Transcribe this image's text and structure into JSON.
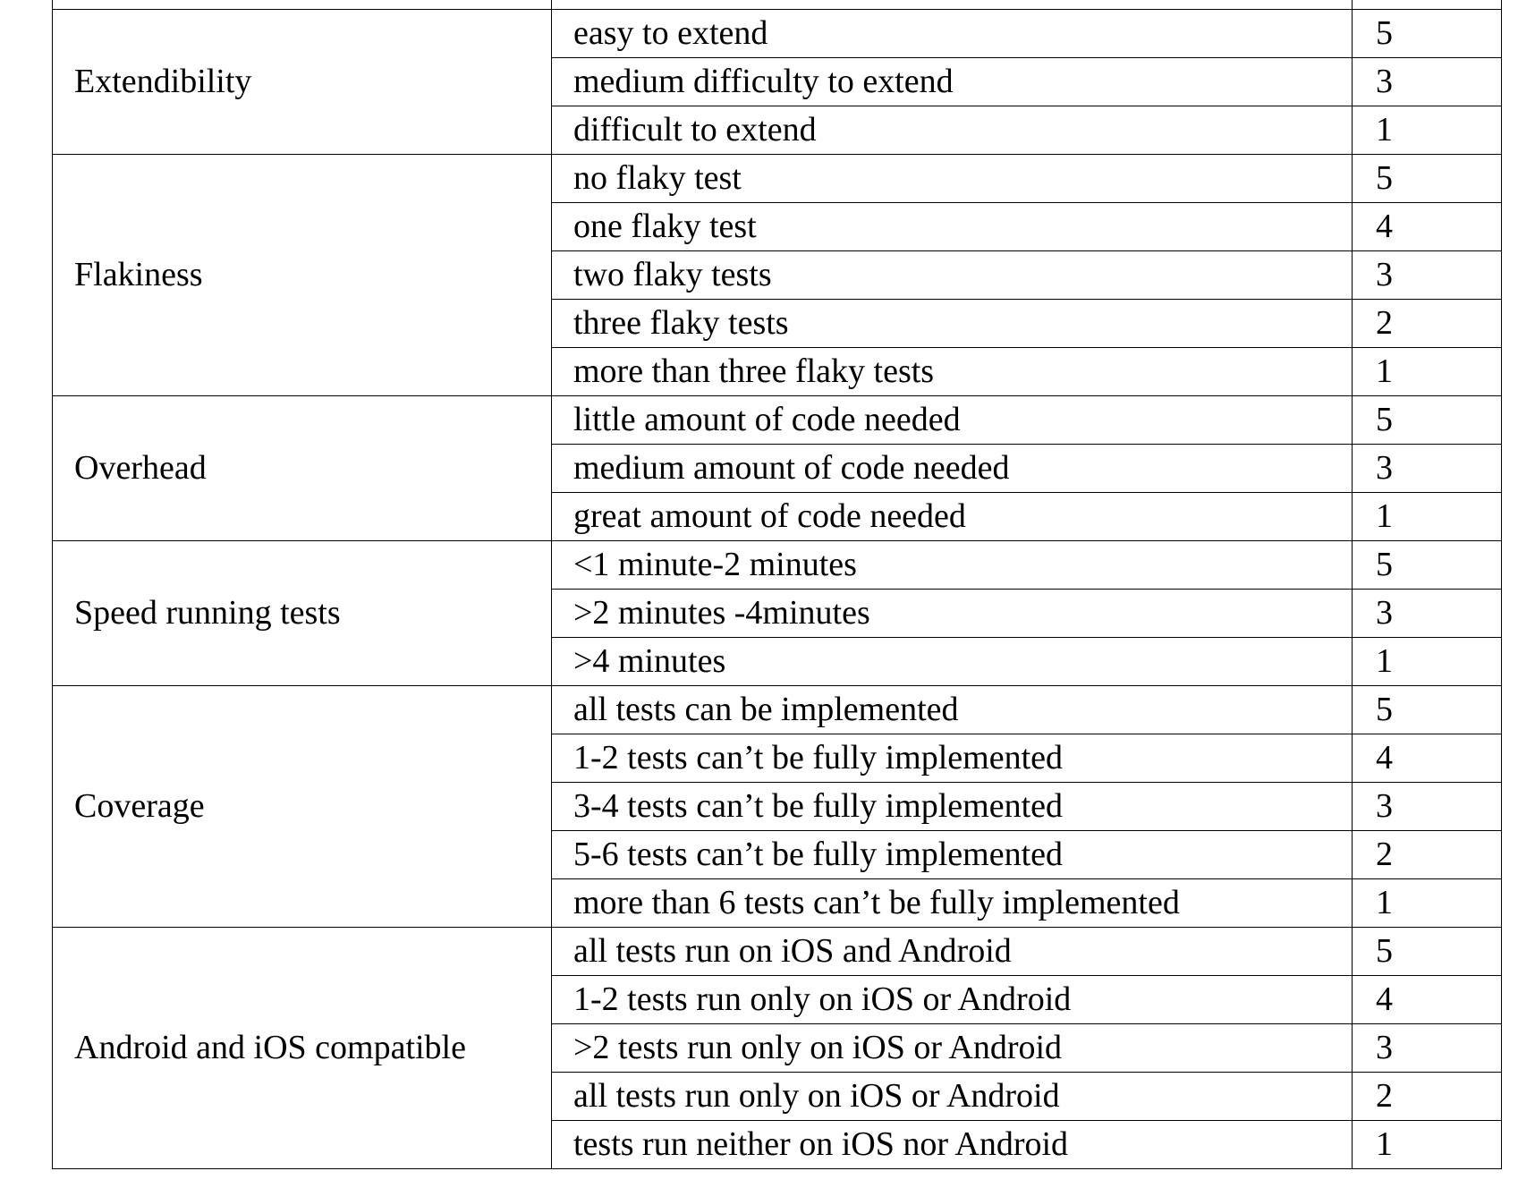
{
  "table": {
    "groups": [
      {
        "criterion": "Extendibility",
        "rows": [
          {
            "description": "easy to extend",
            "score": "5"
          },
          {
            "description": "medium difficulty to extend",
            "score": "3"
          },
          {
            "description": "difficult to extend",
            "score": "1"
          }
        ]
      },
      {
        "criterion": "Flakiness",
        "rows": [
          {
            "description": "no flaky test",
            "score": "5"
          },
          {
            "description": "one flaky test",
            "score": "4"
          },
          {
            "description": "two flaky tests",
            "score": "3"
          },
          {
            "description": "three flaky tests",
            "score": "2"
          },
          {
            "description": "more than three flaky tests",
            "score": "1"
          }
        ]
      },
      {
        "criterion": "Overhead",
        "rows": [
          {
            "description": "little amount of code needed",
            "score": "5"
          },
          {
            "description": "medium amount of code needed",
            "score": "3"
          },
          {
            "description": "great amount of code needed",
            "score": "1"
          }
        ]
      },
      {
        "criterion": "Speed running tests",
        "rows": [
          {
            "description": "<1 minute-2 minutes",
            "score": "5"
          },
          {
            "description": ">2 minutes -4minutes",
            "score": "3"
          },
          {
            "description": ">4 minutes",
            "score": "1"
          }
        ]
      },
      {
        "criterion": "Coverage",
        "rows": [
          {
            "description": "all tests can be implemented",
            "score": "5"
          },
          {
            "description": "1-2 tests can’t be fully implemented",
            "score": "4"
          },
          {
            "description": "3-4 tests can’t be fully implemented",
            "score": "3"
          },
          {
            "description": "5-6 tests can’t be fully implemented",
            "score": "2"
          },
          {
            "description": "more than 6 tests can’t be fully implemented",
            "score": "1"
          }
        ]
      },
      {
        "criterion": "Android and iOS compatible",
        "rows": [
          {
            "description": "all tests run on iOS and Android",
            "score": "5"
          },
          {
            "description": "1-2 tests run only on iOS or Android",
            "score": "4"
          },
          {
            "description": ">2 tests run only on iOS or Android",
            "score": "3"
          },
          {
            "description": "all tests run only on iOS or Android",
            "score": "2"
          },
          {
            "description": "tests run neither on iOS nor Android",
            "score": "1"
          }
        ]
      }
    ]
  }
}
